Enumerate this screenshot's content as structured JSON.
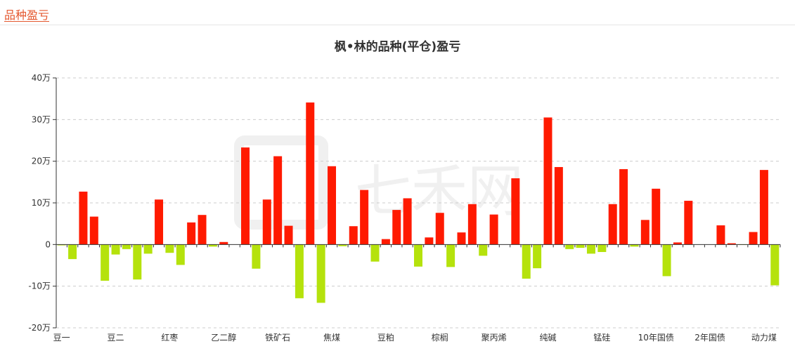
{
  "section": {
    "title": "品种盈亏"
  },
  "chart_data": {
    "type": "bar",
    "title": "枫•林的品种(平仓)盈亏",
    "xlabel": "",
    "ylabel": "",
    "unit_suffix": "万",
    "ylim": [
      -20,
      40
    ],
    "yticks": [
      -20,
      -10,
      0,
      10,
      20,
      30,
      40
    ],
    "ytick_labels": [
      "-20万",
      "-10万",
      "0",
      "10万",
      "20万",
      "30万",
      "40万"
    ],
    "grid": true,
    "legend": "none",
    "category_labels": [
      "豆一",
      "豆二",
      "红枣",
      "乙二醇",
      "铁矿石",
      "焦煤",
      "豆粕",
      "棕榈",
      "聚丙烯",
      "纯碱",
      "锰硅",
      "10年国债",
      "2年国债",
      "动力煤"
    ],
    "values": [
      -0.2,
      -3.5,
      12.7,
      6.7,
      -8.7,
      -2.4,
      -1.1,
      -8.4,
      -2.2,
      10.8,
      -2.0,
      -4.9,
      5.3,
      7.1,
      -0.5,
      0.6,
      0,
      23.3,
      -5.8,
      10.8,
      21.2,
      4.5,
      -12.9,
      34.1,
      -14.0,
      18.8,
      -0.4,
      4.4,
      13.1,
      -4.1,
      1.3,
      8.3,
      11.1,
      -5.3,
      1.7,
      7.6,
      -5.4,
      2.9,
      9.7,
      -2.7,
      7.2,
      0,
      15.9,
      -8.2,
      -5.7,
      30.5,
      18.6,
      -1.1,
      -0.8,
      -2.2,
      -1.8,
      9.7,
      18.1,
      -0.5,
      5.9,
      13.4,
      -7.6,
      0.5,
      10.5,
      0,
      0,
      4.6,
      0.3,
      -0.1,
      3.0,
      17.9,
      -9.8
    ],
    "colors": {
      "positive": "#ff1a00",
      "negative": "#b5e20c",
      "grid": "#cccccc",
      "axis": "#333333"
    },
    "watermark": "七禾网"
  }
}
